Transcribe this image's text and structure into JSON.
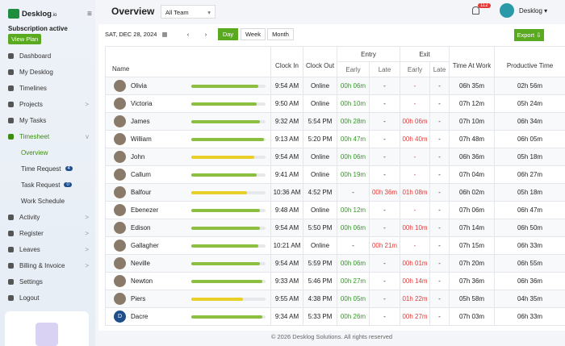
{
  "brand": {
    "name": "Desklog",
    "suffix": ".io"
  },
  "subscription": {
    "status": "Subscription active",
    "button": "View Plan"
  },
  "nav": [
    {
      "label": "Dashboard"
    },
    {
      "label": "My Desklog"
    },
    {
      "label": "Timelines"
    },
    {
      "label": "Projects",
      "arrow": ">"
    },
    {
      "label": "My Tasks"
    },
    {
      "label": "Timesheet",
      "arrow": "v"
    },
    {
      "label": "Overview",
      "sub": true
    },
    {
      "label": "Time Request",
      "sub": true,
      "badge": "4"
    },
    {
      "label": "Task Request",
      "sub": true,
      "badge": "0"
    },
    {
      "label": "Work Schedule",
      "sub": true
    },
    {
      "label": "Activity",
      "arrow": ">"
    },
    {
      "label": "Register",
      "arrow": ">"
    },
    {
      "label": "Leaves",
      "arrow": ">"
    },
    {
      "label": "Billing & Invoice",
      "arrow": ">"
    },
    {
      "label": "Settings"
    },
    {
      "label": "Logout"
    }
  ],
  "header": {
    "title": "Overview",
    "team": "All Team",
    "notifications": "112",
    "user": "Desklog"
  },
  "toolbar": {
    "date": "SAT, DEC 28, 2024",
    "views": [
      "Day",
      "Week",
      "Month"
    ],
    "export": "Export"
  },
  "table": {
    "headers": {
      "name": "Name",
      "clock_in": "Clock In",
      "clock_out": "Clock Out",
      "entry": "Entry",
      "exit": "Exit",
      "early": "Early",
      "late": "Late",
      "time_at_work": "Time At Work",
      "productive_time": "Productive Time"
    },
    "rows": [
      {
        "name": "Olivia",
        "progress": 90,
        "color": "#8cbf3f",
        "clock_in": "9:54 AM",
        "clock_out": "Online",
        "entry_early": "00h 06m",
        "entry_late": "-",
        "exit_early": "-",
        "exit_late": "-",
        "time_at_work": "06h 35m",
        "productive_time": "02h 56m"
      },
      {
        "name": "Victoria",
        "progress": 88,
        "color": "#8cbf3f",
        "clock_in": "9:50 AM",
        "clock_out": "Online",
        "entry_early": "00h 10m",
        "entry_late": "-",
        "exit_early": "-",
        "exit_late": "-",
        "time_at_work": "07h 12m",
        "productive_time": "05h 24m"
      },
      {
        "name": "James",
        "progress": 92,
        "color": "#8cbf3f",
        "clock_in": "9:32 AM",
        "clock_out": "5:54 PM",
        "entry_early": "00h 28m",
        "entry_late": "-",
        "exit_early": "00h 06m",
        "exit_late": "-",
        "time_at_work": "07h 10m",
        "productive_time": "06h 34m"
      },
      {
        "name": "William",
        "progress": 98,
        "color": "#8cbf3f",
        "clock_in": "9:13 AM",
        "clock_out": "5:20 PM",
        "entry_early": "00h 47m",
        "entry_late": "-",
        "exit_early": "00h 40m",
        "exit_late": "-",
        "time_at_work": "07h 48m",
        "productive_time": "06h 05m"
      },
      {
        "name": "John",
        "progress": 85,
        "color": "#e8cf2a",
        "clock_in": "9:54 AM",
        "clock_out": "Online",
        "entry_early": "00h 06m",
        "entry_late": "-",
        "exit_early": "-",
        "exit_late": "-",
        "time_at_work": "06h 36m",
        "productive_time": "05h 18m"
      },
      {
        "name": "Callum",
        "progress": 88,
        "color": "#8cbf3f",
        "clock_in": "9:41 AM",
        "clock_out": "Online",
        "entry_early": "00h 19m",
        "entry_late": "-",
        "exit_early": "-",
        "exit_late": "-",
        "time_at_work": "07h 04m",
        "productive_time": "06h 27m"
      },
      {
        "name": "Balfour",
        "progress": 75,
        "color": "#e8cf2a",
        "clock_in": "10:36 AM",
        "clock_out": "4:52 PM",
        "entry_early": "-",
        "entry_late": "00h 36m",
        "exit_early": "01h 08m",
        "exit_late": "-",
        "time_at_work": "06h 02m",
        "productive_time": "05h 18m"
      },
      {
        "name": "Ebenezer",
        "progress": 92,
        "color": "#8cbf3f",
        "clock_in": "9:48 AM",
        "clock_out": "Online",
        "entry_early": "00h 12m",
        "entry_late": "-",
        "exit_early": "-",
        "exit_late": "-",
        "time_at_work": "07h 06m",
        "productive_time": "06h 47m"
      },
      {
        "name": "Edison",
        "progress": 92,
        "color": "#8cbf3f",
        "clock_in": "9:54 AM",
        "clock_out": "5:50 PM",
        "entry_early": "00h 06m",
        "entry_late": "-",
        "exit_early": "00h 10m",
        "exit_late": "-",
        "time_at_work": "07h 14m",
        "productive_time": "06h 50m"
      },
      {
        "name": "Gallagher",
        "progress": 90,
        "color": "#8cbf3f",
        "clock_in": "10:21 AM",
        "clock_out": "Online",
        "entry_early": "-",
        "entry_late": "00h 21m",
        "exit_early": "-",
        "exit_late": "-",
        "time_at_work": "07h 15m",
        "productive_time": "06h 33m"
      },
      {
        "name": "Neville",
        "progress": 92,
        "color": "#8cbf3f",
        "clock_in": "9:54 AM",
        "clock_out": "5:59 PM",
        "entry_early": "00h 06m",
        "entry_late": "-",
        "exit_early": "00h 01m",
        "exit_late": "-",
        "time_at_work": "07h 20m",
        "productive_time": "06h 55m"
      },
      {
        "name": "Newton",
        "progress": 96,
        "color": "#8cbf3f",
        "clock_in": "9:33 AM",
        "clock_out": "5:46 PM",
        "entry_early": "00h 27m",
        "entry_late": "-",
        "exit_early": "00h 14m",
        "exit_late": "-",
        "time_at_work": "07h 36m",
        "productive_time": "06h 36m"
      },
      {
        "name": "Piers",
        "progress": 70,
        "color": "#e8cf2a",
        "clock_in": "9:55 AM",
        "clock_out": "4:38 PM",
        "entry_early": "00h 05m",
        "entry_late": "-",
        "exit_early": "01h 22m",
        "exit_late": "-",
        "time_at_work": "05h 58m",
        "productive_time": "04h 35m"
      },
      {
        "name": "Dacre",
        "initial": "D",
        "progress": 96,
        "color": "#8cbf3f",
        "clock_in": "9:34 AM",
        "clock_out": "5:33 PM",
        "entry_early": "00h 26m",
        "entry_late": "-",
        "exit_early": "00h 27m",
        "exit_late": "-",
        "time_at_work": "07h 03m",
        "productive_time": "06h 33m"
      }
    ]
  },
  "footer": "© 2026 Desklog Solutions. All rights reserved"
}
